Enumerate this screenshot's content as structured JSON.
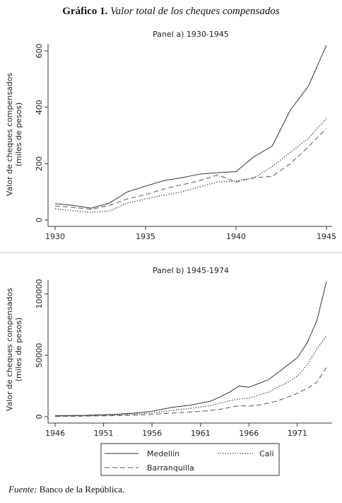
{
  "title": {
    "prefix": "Gráfico 1.",
    "text": "Valor total de los cheques compensados"
  },
  "source": {
    "label": "Fuente:",
    "text": "Banco de la República."
  },
  "legend": {
    "position": "bottom"
  },
  "styles": {
    "Medellín": {
      "color": "#333333",
      "dash": "none"
    },
    "Cali": {
      "color": "#333333",
      "dash": "dotted"
    },
    "Barranquilla": {
      "color": "#555555",
      "dash": "dashed"
    }
  },
  "chart_data": [
    {
      "type": "line",
      "title": "Panel a) 1930-1945",
      "ylabel": "Valor de cheques compensados",
      "ylabel2": "(miles de pesos)",
      "xlim": [
        1930,
        1945
      ],
      "ylim": [
        0,
        620
      ],
      "xticks": [
        1930,
        1935,
        1940,
        1945
      ],
      "yticks": [
        0,
        200,
        400,
        600
      ],
      "grid": false,
      "x": [
        1930,
        1931,
        1932,
        1933,
        1934,
        1935,
        1936,
        1937,
        1938,
        1939,
        1940,
        1941,
        1942,
        1943,
        1944,
        1945
      ],
      "series": [
        {
          "name": "Medellín",
          "values": [
            58,
            52,
            42,
            60,
            100,
            120,
            140,
            150,
            163,
            168,
            172,
            225,
            262,
            390,
            475,
            620
          ]
        },
        {
          "name": "Cali",
          "values": [
            40,
            33,
            27,
            32,
            60,
            75,
            88,
            100,
            118,
            135,
            138,
            150,
            190,
            240,
            290,
            360
          ]
        },
        {
          "name": "Barranquilla",
          "values": [
            50,
            45,
            38,
            52,
            75,
            90,
            110,
            125,
            140,
            160,
            135,
            150,
            155,
            200,
            260,
            325
          ]
        }
      ]
    },
    {
      "type": "line",
      "title": "Panel b) 1945-1974",
      "ylabel": "Valor de cheques compensados",
      "ylabel2": "(miles de pesos)",
      "xlim": [
        1946,
        1974
      ],
      "ylim": [
        0,
        110000
      ],
      "xticks": [
        1946,
        1951,
        1956,
        1961,
        1966,
        1971
      ],
      "yticks": [
        0,
        50000,
        100000
      ],
      "grid": false,
      "x": [
        1946,
        1947,
        1948,
        1949,
        1950,
        1951,
        1952,
        1953,
        1954,
        1955,
        1956,
        1957,
        1958,
        1959,
        1960,
        1961,
        1962,
        1963,
        1964,
        1965,
        1966,
        1967,
        1968,
        1969,
        1970,
        1971,
        1972,
        1973,
        1974
      ],
      "series": [
        {
          "name": "Medellín",
          "values": [
            800,
            900,
            1000,
            1100,
            1400,
            1600,
            1900,
            2300,
            2800,
            3500,
            4500,
            6000,
            7500,
            8500,
            9500,
            11000,
            12500,
            16000,
            20000,
            25000,
            24000,
            27000,
            30000,
            36000,
            42000,
            48000,
            60000,
            78000,
            110000
          ]
        },
        {
          "name": "Cali",
          "values": [
            400,
            500,
            600,
            700,
            900,
            1100,
            1300,
            1600,
            2000,
            2500,
            3200,
            4000,
            5000,
            6000,
            6800,
            7800,
            9000,
            11000,
            13000,
            14500,
            15000,
            17500,
            20000,
            24000,
            28000,
            33000,
            42000,
            55000,
            66000
          ]
        },
        {
          "name": "Barranquilla",
          "values": [
            300,
            350,
            400,
            500,
            600,
            700,
            800,
            1000,
            1200,
            1500,
            1900,
            2400,
            2900,
            3400,
            3800,
            4300,
            5000,
            6000,
            7500,
            9000,
            8500,
            9500,
            11000,
            13000,
            16000,
            19000,
            23000,
            28000,
            40000
          ]
        }
      ]
    }
  ]
}
